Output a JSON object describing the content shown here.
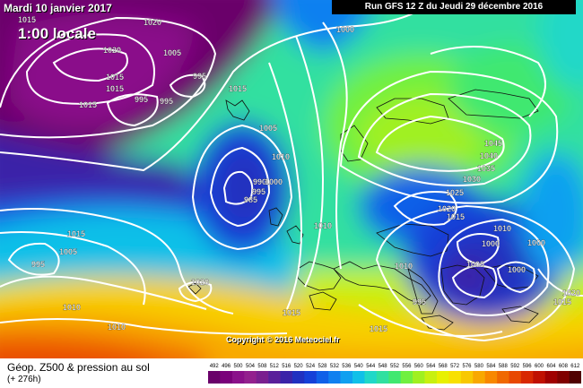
{
  "map": {
    "date_label": "Mardi 10 janvier 2017",
    "hour_label": "1:00 locale",
    "run_label": "Run GFS 12 Z du Jeudi 29 décembre 2016",
    "copyright": "Copyright © 2016 Meteociel.fr",
    "isobar_labels": [
      "1020",
      "1015",
      "1015",
      "995",
      "995",
      "995",
      "1015",
      "990",
      "1000",
      "1005",
      "1010",
      "990",
      "995",
      "985",
      "1000",
      "1015",
      "1005",
      "995",
      "1010",
      "1020",
      "1015",
      "1010",
      "1015",
      "1045",
      "1040",
      "1035",
      "1030",
      "1025",
      "1020",
      "1015",
      "1010",
      "1010",
      "1000",
      "1005",
      "1000",
      "1020",
      "1015",
      "1015",
      "1020",
      "1005",
      "1015",
      "995",
      "1000",
      "1010"
    ]
  },
  "legend": {
    "title": "Géop. Z500 & pression au sol",
    "subtitle": "(+ 276h)",
    "scale_values": [
      "492",
      "496",
      "500",
      "504",
      "508",
      "512",
      "516",
      "520",
      "524",
      "528",
      "532",
      "536",
      "540",
      "544",
      "548",
      "552",
      "556",
      "560",
      "564",
      "568",
      "572",
      "576",
      "580",
      "584",
      "588",
      "592",
      "596",
      "600",
      "604",
      "608",
      "612"
    ],
    "scale_colors": [
      "#6a006a",
      "#7a007a",
      "#8a108a",
      "#93208e",
      "#7a1f8f",
      "#5a1f9a",
      "#3a23a8",
      "#2030c0",
      "#1540d8",
      "#1060e8",
      "#1080f0",
      "#10a0f0",
      "#10c0e8",
      "#20d8c8",
      "#30e0a0",
      "#40e870",
      "#70f040",
      "#a0f020",
      "#c8f010",
      "#e8f000",
      "#f8e000",
      "#f8c800",
      "#f8a800",
      "#f88800",
      "#f06800",
      "#e84800",
      "#d82800",
      "#c01000",
      "#a00000",
      "#800000",
      "#500000"
    ]
  }
}
